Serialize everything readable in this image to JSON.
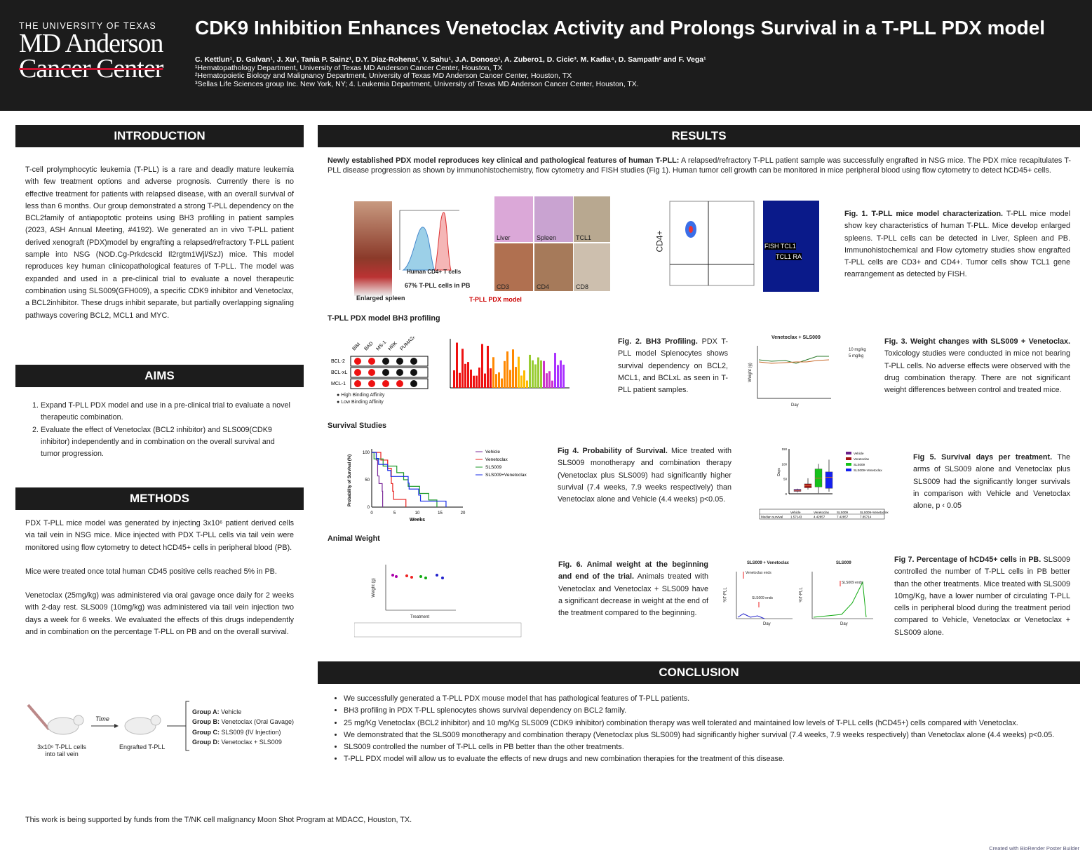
{
  "header": {
    "logo": {
      "line1": "THE UNIVERSITY OF TEXAS",
      "line2": "MD Anderson",
      "line3": "Cancer Center"
    },
    "title": "CDK9 Inhibition Enhances Venetoclax Activity and Prolongs Survival in a T-PLL PDX model",
    "authors": "C. Kettlun¹, D. Galvan¹, J. Xu¹, Tania P. Sainz¹, D.Y. Diaz-Rohena², V. Sahu¹, J.A. Donoso¹, A. Zubero1, D. Cicic³. M. Kadia⁴, D. Sampath² and F. Vega¹",
    "affiliations": [
      "¹Hematopathology Department, University of Texas MD Anderson Cancer Center, Houston, TX",
      "²Hematopoietic Biology and Malignancy Department, University of Texas MD Anderson Cancer Center, Houston, TX",
      "³Sellas Life Sciences group Inc. New York, NY; 4. Leukemia Department, University of Texas MD Anderson Cancer Center, Houston, TX."
    ]
  },
  "intro": {
    "heading": "INTRODUCTION",
    "text": "T-cell prolymphocytic leukemia (T-PLL) is a rare and deadly mature leukemia with few treatment options and adverse prognosis. Currently there is no effective treatment for patients with relapsed disease, with an overall survival of less than 6 months. Our group demonstrated a strong T-PLL dependency on the BCL2family of antiapoptotic proteins using BH3 profiling in patient samples (2023, ASH Annual Meeting, #4192). We generated an in vivo T-PLL patient derived xenograft (PDX)model by engrafting a relapsed/refractory T-PLL patient sample into NSG (NOD.Cg-Prkdcscid Il2rgtm1Wjl/SzJ) mice. This model reproduces key human clinicopathological features of T-PLL. The model was expanded and used in a pre-clinical trial to evaluate a novel therapeutic combination using SLS009(GFH009), a specific CDK9 inhibitor and Venetoclax, a BCL2inhibitor. These drugs inhibit separate, but partially overlapping signaling pathways covering BCL2, MCL1 and MYC."
  },
  "aims": {
    "heading": "AIMS",
    "items": [
      "Expand T-PLL PDX model and use in a pre-clinical trial  to evaluate a novel therapeutic combination.",
      "Evaluate the effect of Venetoclax (BCL2 inhibitor) and SLS009(CDK9 inhibitor) independently and in combination on the overall survival and tumor progression."
    ]
  },
  "methods": {
    "heading": "METHODS",
    "paragraphs": [
      "PDX T-PLL mice model was generated by injecting 3x10⁶ patient derived cells via tail vein in NSG mice. Mice injected with PDX T-PLL cells via tail vein were monitored using flow cytometry to detect hCD45+ cells in peripheral blood (PB).",
      "Mice were treated once total human CD45 positive cells reached 5% in PB.",
      "Venetoclax (25mg/kg) was administered via oral gavage once daily for 2 weeks with 2-day rest. SLS009 (10mg/kg) was administered via tail vein injection two days a week for 6 weeks. We evaluated the effects of this drugs independently and in combination on the percentage T-PLL on PB and on the overall survival."
    ],
    "diagram": {
      "time": "Time",
      "inject": "3x10⁶ T-PLL cells into tail vein",
      "engrafted": "Engrafted T-PLL",
      "groups": [
        {
          "k": "Group A:",
          "v": " Vehicle"
        },
        {
          "k": "Group B:",
          "v": " Venetoclax (Oral Gavage)"
        },
        {
          "k": "Group C:",
          "v": " SLS009 (IV Injection)"
        },
        {
          "k": "Group D:",
          "v": " Venetoclax + SLS009"
        }
      ]
    }
  },
  "results": {
    "heading": "RESULTS",
    "lead_bold": "Newly established PDX model reproduces key clinical and pathological features of human T-PLL:",
    "lead": " A relapsed/refractory T-PLL patient sample was successfully engrafted in NSG mice. The PDX mice recapitulates T-PLL disease progression as shown by immunohistochemistry, flow cytometry and FISH studies (Fig 1). Human tumor cell growth can be monitored in mice peripheral blood using flow cytometry to detect hCD45+ cells.",
    "fig1": {
      "labels": {
        "spleen": "Enlarged spleen",
        "hcd4": "Human CD4+ T cells",
        "pct": "67% T-PLL cells in PB",
        "model": "T-PLL PDX model",
        "liver": "Liver",
        "spl": "Spleen",
        "tcl1": "TCL1",
        "cd3": "CD3",
        "cd4": "CD4",
        "cd8": "CD8",
        "cd4axis": "CD4+",
        "fish": "FISH TCL1",
        "ra": "TCL1 RA"
      },
      "cap_bold": "Fig. 1. T-PLL mice model characterization.",
      "cap": " T-PLL mice model show key characteristics of human T-PLL. Mice develop enlarged spleens. T-PLL cells can be detected in Liver, Spleen and PB. Immunohistochemical and Flow cytometry studies show engrafted T-PLL cells are CD3+ and CD4+.  Tumor cells show TCL1 gene rearrangement as detected by FISH."
    },
    "bh3_title": "T-PLL PDX model BH3 profiling",
    "fig2": {
      "peptides": [
        "BIM",
        "BAD",
        "MS-1",
        "HRK",
        "PUMA2A"
      ],
      "rows": [
        "BCL-2",
        "BCL-xL",
        "MCL-1"
      ],
      "legend_high": "High Binding Affinity",
      "legend_low": "Low Binding Affinity",
      "cap_bold": "Fig. 2. BH3 Profiling.",
      "cap": " PDX T-PLL model Splenocytes shows survival dependency on BCL2, MCL1, and BCLxL as seen in T-PLL patient samples."
    },
    "fig3": {
      "title": "Venetoclax + SLS009",
      "legend": [
        "10 mg/kg",
        "5 mg/kg"
      ],
      "xlabel": "Day",
      "ylabel": "Weight (g)",
      "cap_bold": "Fig. 3. Weight changes with SLS009 + Venetoclax.",
      "cap": " Toxicology studies were conducted in mice not bearing T-PLL cells. No adverse effects were observed with the drug combination therapy. There are not significant weight differences between control and treated mice."
    },
    "survival_title": "Survival Studies",
    "fig4": {
      "cap_bold": "Fig 4. Probability of Survival.",
      "cap": " Mice treated with SLS009 monotherapy and combination therapy (Venetoclax plus SLS009) had significantly higher survival (7.4 weeks, 7.9 weeks respectively) than Venetoclax alone and Vehicle (4.4 weeks) p<0.05."
    },
    "fig5": {
      "table_row_label": "Median survival",
      "cap_bold": "Fig 5. Survival days per treatment.",
      "cap": " The arms of SLS009 alone and Venetoclax plus SLS009 had the significantly longer survivals in comparison with Vehicle and Venetoclax alone, p ‹ 0.05"
    },
    "weight_title": "Animal Weight",
    "fig6": {
      "ylabel": "Weight (g)",
      "xlabel": "Treatment",
      "cap_bold": "Fig. 6. Animal weight at the beginning and end of the trial.",
      "cap": " Animals treated with Venetoclax and Venetoclax + SLS009 have a significant decrease in weight at the end of the treatment compared to the beginning."
    },
    "fig7": {
      "panels": [
        "SLS009 + Venetoclax",
        "SLS009"
      ],
      "ann": [
        "Venetoclax ends",
        "SLS009 ends"
      ],
      "xlabel": "Day",
      "ylabel": "%T-PLL",
      "cap_bold": "Fig 7. Percentage of hCD45+ cells in PB.",
      "cap": " SLS009 controlled the number of T-PLL cells in PB better than the other treatments. Mice treated with SLS009 10mg/Kg, have a lower number of circulating T-PLL cells in peripheral blood during the treatment period compared to Vehicle, Venetoclax or Venetoclax + SLS009 alone."
    }
  },
  "conclusion": {
    "heading": "CONCLUSION",
    "items": [
      "We successfully generated a T-PLL PDX mouse model that  has pathological features of  T-PLL patients.",
      "BH3 profiling in PDX T-PLL splenocytes shows survival dependency on BCL2 family.",
      "25 mg/Kg Venetoclax (BCL2 inhibitor) and 10 mg/Kg SLS009 (CDK9 inhibitor) combination therapy was well tolerated and maintained low levels of T-PLL cells (hCD45+) cells compared with Venetoclax.",
      "We demonstrated that the SLS009 monotherapy and combination therapy (Venetoclax plus SLS009) had significantly higher survival (7.4 weeks, 7.9 weeks respectively) than Venetoclax alone (4.4 weeks) p<0.05.",
      "SLS009 controlled the number of T-PLL cells in PB better than the other treatments.",
      "T-PLL PDX model will allow us to evaluate the effects of new  drugs  and  new combination therapies for the treatment of this disease."
    ]
  },
  "footer": "This work is being supported by funds from the T/NK cell malignancy Moon Shot Program at MDACC, Houston, TX.",
  "credit": "Created with BioRender Poster Builder",
  "chart_data": [
    {
      "type": "line",
      "title": "Probability of Survival",
      "xlabel": "Weeks",
      "ylabel": "Probability of Survival (%)",
      "xlim": [
        0,
        20
      ],
      "ylim": [
        0,
        100
      ],
      "xticks": [
        0,
        5,
        10,
        15,
        20
      ],
      "yticks": [
        0,
        50,
        100
      ],
      "legend": "right",
      "series": [
        {
          "name": "Vehicle",
          "color": "#7b2a9a",
          "steps": [
            [
              0,
              100
            ],
            [
              1,
              86
            ],
            [
              1.3,
              57
            ],
            [
              1.6,
              43
            ],
            [
              2.3,
              29
            ],
            [
              2.4,
              0
            ]
          ]
        },
        {
          "name": "Venetoclax",
          "color": "#e8201e",
          "steps": [
            [
              0,
              100
            ],
            [
              2,
              86
            ],
            [
              3.5,
              71
            ],
            [
              4.3,
              43
            ],
            [
              4.6,
              29
            ],
            [
              4.8,
              14
            ],
            [
              7.5,
              0
            ]
          ]
        },
        {
          "name": "SLS009",
          "color": "#1d9a2a",
          "steps": [
            [
              0,
              100
            ],
            [
              0.5,
              88
            ],
            [
              2.5,
              75
            ],
            [
              5.5,
              63
            ],
            [
              7,
              50
            ],
            [
              8,
              38
            ],
            [
              10.5,
              25
            ],
            [
              12.5,
              13
            ],
            [
              14.3,
              0
            ]
          ]
        },
        {
          "name": "SLS009+Venetoclax",
          "color": "#1a2ee8",
          "steps": [
            [
              0,
              100
            ],
            [
              1,
              89
            ],
            [
              1.5,
              78
            ],
            [
              3.5,
              67
            ],
            [
              4.2,
              56
            ],
            [
              8,
              44
            ],
            [
              8.2,
              33
            ],
            [
              10.3,
              22
            ],
            [
              10.7,
              11
            ],
            [
              16.3,
              0
            ]
          ]
        }
      ]
    },
    {
      "type": "box",
      "ylabel": "Days",
      "ylim": [
        0,
        150
      ],
      "yticks": [
        0,
        50,
        100,
        150
      ],
      "legend": "right",
      "series": [
        {
          "name": "Vehicle",
          "color": "#6a1f8a",
          "min": 5,
          "q1": 8,
          "median": 10,
          "q3": 15,
          "max": 17,
          "median_survival": "1.57143"
        },
        {
          "name": "Venetoclax",
          "color": "#a31313",
          "min": 14,
          "q1": 20,
          "median": 27,
          "q3": 33,
          "max": 52,
          "median_survival": "4.42857"
        },
        {
          "name": "SLS009",
          "color": "#16c21a",
          "min": 2,
          "q1": 23,
          "median": 52,
          "q3": 83,
          "max": 100,
          "median_survival": "7.42857"
        },
        {
          "name": "SLS009+Venetoclax",
          "color": "#1420ee",
          "min": 7,
          "q1": 18,
          "median": 55,
          "q3": 73,
          "max": 114,
          "median_survival": "7.85714"
        }
      ]
    }
  ]
}
